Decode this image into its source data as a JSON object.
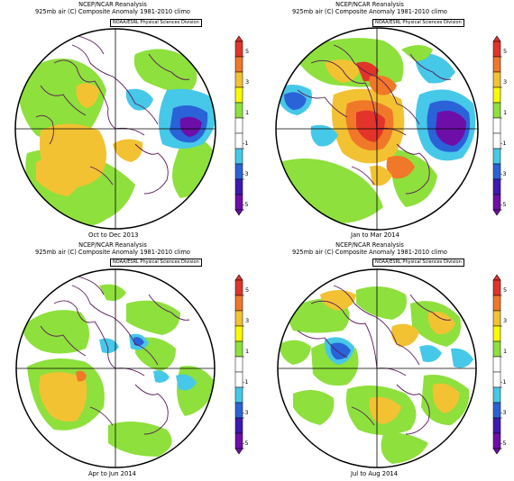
{
  "colorbar": {
    "ticks": [
      "5",
      "3",
      "1",
      "-1",
      "-3",
      "-5"
    ],
    "colors": [
      "#e2342a",
      "#f07828",
      "#f2c233",
      "#fafa00",
      "#8ee03c",
      "#ffffff",
      "#ffffff",
      "#46c8e8",
      "#2a62d8",
      "#3c1ab4",
      "#6e0ea8"
    ]
  },
  "panels": [
    {
      "title_line1": "NCEP/NCAR Reanalysis",
      "title_line2": "925mb air (C) Composite Anomaly 1981-2010 climo",
      "credit": "NOAA/ESRL Physical Sciences Division",
      "period": "Oct to Dec 2013"
    },
    {
      "title_line1": "NCEP/NCAR Reanalysis",
      "title_line2": "925mb air (C) Composite Anomaly 1981-2010 climo",
      "credit": "NOAA/ESRL Physical Sciences Division",
      "period": "Jan to Mar 2014"
    },
    {
      "title_line1": "NCEP/NCAR Reanalysis",
      "title_line2": "925mb air (C) Composite Anomaly 1981-2010 climo",
      "credit": "NOAA/ESRL Physical Sciences Division",
      "period": "Apr to Jun 2014"
    },
    {
      "title_line1": "NCEP/NCAR Reanalysis",
      "title_line2": "925mb air (C) Composite Anomaly 1981-2010 climo",
      "credit": "NOAA/ESRL Physical Sciences Division",
      "period": "Jul to Aug 2014"
    }
  ]
}
